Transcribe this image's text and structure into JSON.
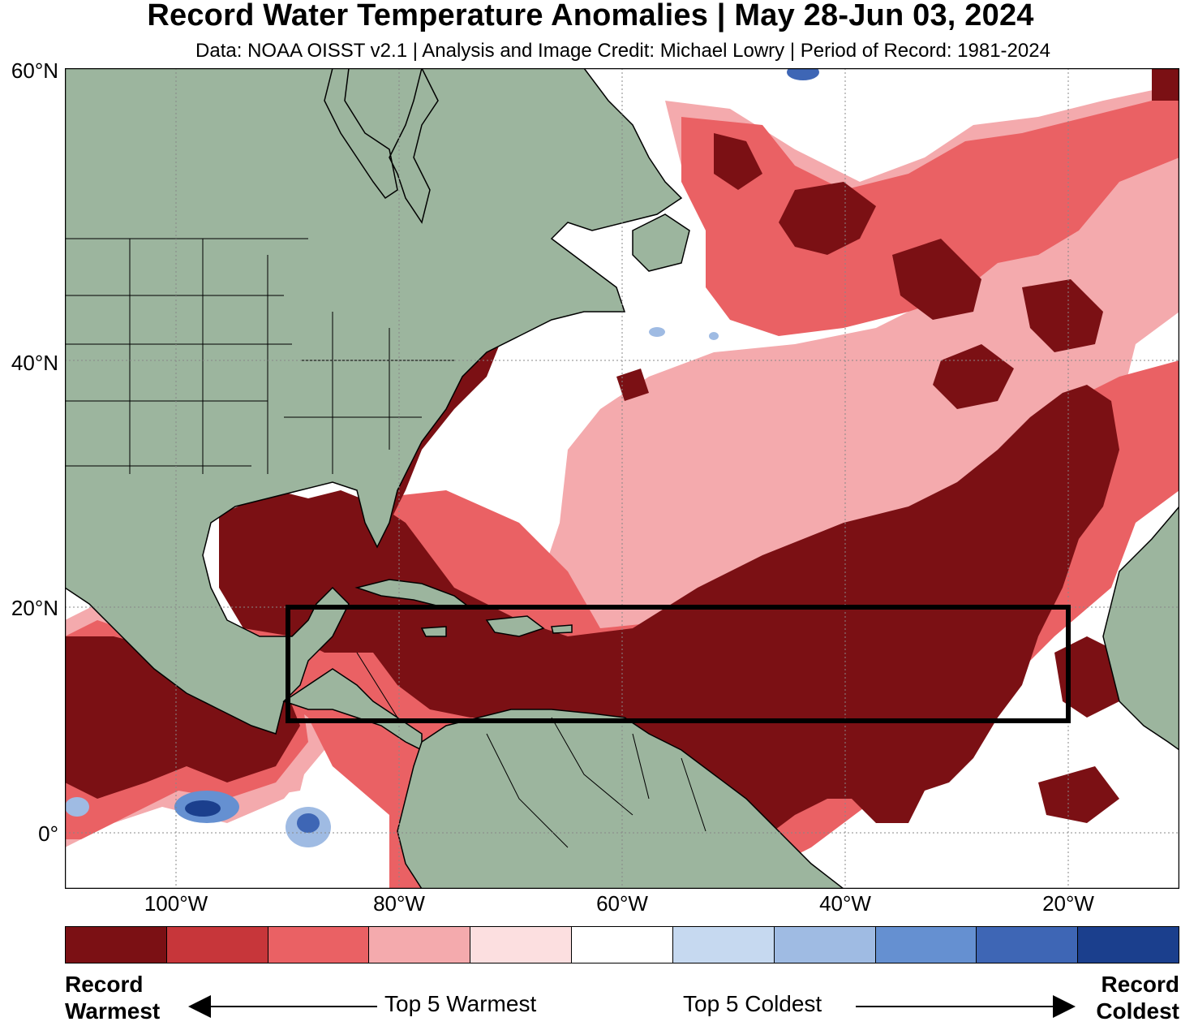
{
  "title": "Record Water Temperature Anomalies | May 28-Jun 03, 2024",
  "subtitle": "Data: NOAA OISST v2.1 | Analysis and Image Credit: Michael Lowry | Period of Record: 1981-2024",
  "axes": {
    "lat_ticks": [
      "60°N",
      "40°N",
      "20°N",
      "0°"
    ],
    "lon_ticks": [
      "100°W",
      "80°W",
      "60°W",
      "40°W",
      "20°W"
    ],
    "lat_range": [
      -5,
      60
    ],
    "lon_range": [
      -110,
      -10
    ],
    "grid": true
  },
  "map": {
    "land_color": "#9cb59e",
    "ocean_neutral_color": "#ffffff",
    "highlight_box": {
      "lat_min": 10,
      "lat_max": 20,
      "lon_min": -90,
      "lon_max": -20
    }
  },
  "legend": {
    "colors": [
      "#7b1014",
      "#c7363a",
      "#ea6164",
      "#f4aaad",
      "#fcdfe0",
      "#ffffff",
      "#c6d9f0",
      "#9fbbe3",
      "#6590d1",
      "#3e66b5",
      "#1b3f8d"
    ],
    "left_label_line1": "Record",
    "left_label_line2": "Warmest",
    "right_label_line1": "Record",
    "right_label_line2": "Coldest",
    "warm_text": "Top 5 Warmest",
    "cold_text": "Top 5 Coldest"
  }
}
